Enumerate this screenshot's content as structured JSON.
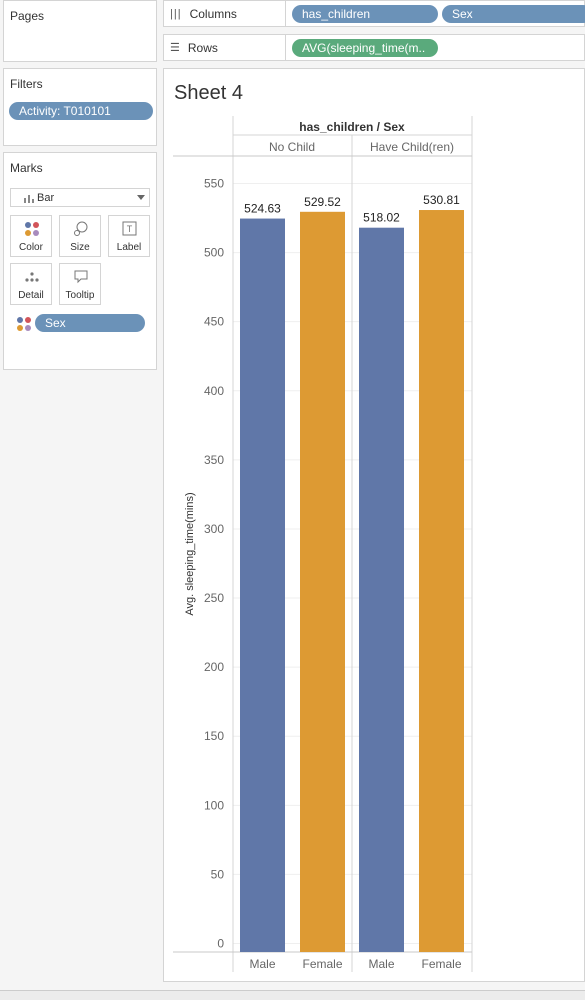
{
  "pages": {
    "title": "Pages"
  },
  "filters": {
    "title": "Filters",
    "pill": "Activity: T010101"
  },
  "marks": {
    "title": "Marks",
    "type": "Bar",
    "buttons": [
      "Color",
      "Size",
      "Label",
      "Detail",
      "Tooltip"
    ],
    "pill": "Sex"
  },
  "columns_shelf": {
    "label": "Columns",
    "pills": [
      "has_children",
      "Sex"
    ]
  },
  "rows_shelf": {
    "label": "Rows",
    "pills": [
      "AVG(sleeping_time(m.."
    ]
  },
  "sheet": {
    "title": "Sheet 4"
  },
  "colors": {
    "Male": "#6077a8",
    "Female": "#dd9a33"
  },
  "chart_data": {
    "type": "bar",
    "header_title": "has_children / Sex",
    "groups": [
      {
        "name": "No Child",
        "bars": [
          {
            "sex": "Male",
            "value": 524.63
          },
          {
            "sex": "Female",
            "value": 529.52
          }
        ]
      },
      {
        "name": "Have Child(ren)",
        "bars": [
          {
            "sex": "Male",
            "value": 518.02
          },
          {
            "sex": "Female",
            "value": 530.81
          }
        ]
      }
    ],
    "ylabel": "Avg. sleeping_time(mins)",
    "ylim": [
      0,
      560
    ],
    "yticks": [
      0,
      50,
      100,
      150,
      200,
      250,
      300,
      350,
      400,
      450,
      500,
      550
    ],
    "grid": true
  }
}
